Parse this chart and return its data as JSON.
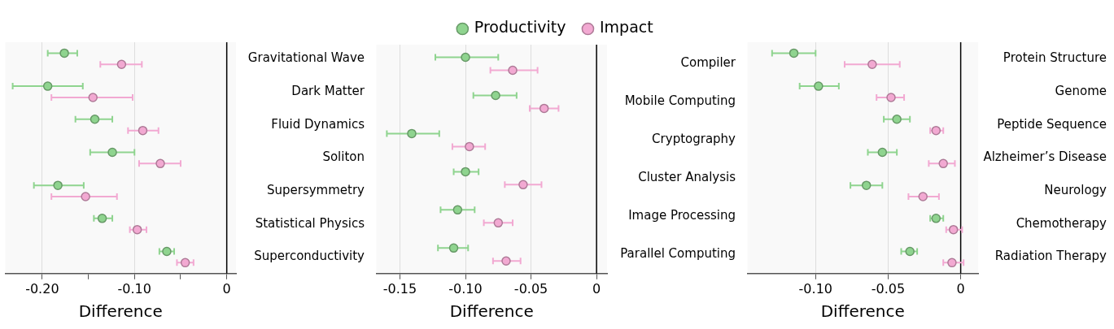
{
  "chart_data": [
    {
      "type": "scatter",
      "orientation": "horizontal",
      "xlabel": "Difference",
      "categories": [
        "Gravitational Wave",
        "Dark Matter",
        "Fluid Dynamics",
        "Soliton",
        "Supersymmetry",
        "Statistical Physics",
        "Superconductivity"
      ],
      "xlim": [
        -0.24,
        0.01
      ],
      "xticks": [
        {
          "value": -0.2,
          "label": "-0.20"
        },
        {
          "value": -0.15,
          "label": null
        },
        {
          "value": -0.1,
          "label": "-0.10"
        },
        {
          "value": -0.05,
          "label": null
        },
        {
          "value": 0,
          "label": "0"
        }
      ],
      "grid": "x",
      "marker": "circle",
      "ref_lines": [
        {
          "axis": "x",
          "value": 0,
          "color": "#000000"
        }
      ],
      "series": [
        {
          "color": "#8fd48f",
          "values": [
            -0.176,
            -0.194,
            -0.143,
            -0.124,
            -0.183,
            -0.135,
            -0.065
          ],
          "errors": [
            [
              -0.194,
              -0.162
            ],
            [
              -0.232,
              -0.156
            ],
            [
              -0.164,
              -0.124
            ],
            [
              -0.148,
              -0.1
            ],
            [
              -0.209,
              -0.155
            ],
            [
              -0.144,
              -0.124
            ],
            [
              -0.073,
              -0.057
            ]
          ]
        },
        {
          "color": "#f2a9d2",
          "values": [
            -0.114,
            -0.145,
            -0.091,
            -0.072,
            -0.153,
            -0.097,
            -0.045
          ],
          "errors": [
            [
              -0.137,
              -0.092
            ],
            [
              -0.19,
              -0.102
            ],
            [
              -0.107,
              -0.074
            ],
            [
              -0.095,
              -0.05
            ],
            [
              -0.19,
              -0.119
            ],
            [
              -0.105,
              -0.087
            ],
            [
              -0.054,
              -0.036
            ]
          ]
        }
      ]
    },
    {
      "type": "scatter",
      "orientation": "horizontal",
      "xlabel": "Difference",
      "categories": [
        "Compiler",
        "Mobile Computing",
        "Cryptography",
        "Cluster Analysis",
        "Image Processing",
        "Parallel Computing"
      ],
      "xlim": [
        -0.168,
        0.008
      ],
      "xticks": [
        {
          "value": -0.15,
          "label": "-0.15"
        },
        {
          "value": -0.1,
          "label": "-0.10"
        },
        {
          "value": -0.05,
          "label": "-0.05"
        },
        {
          "value": 0,
          "label": "0"
        }
      ],
      "grid": "x",
      "marker": "circle",
      "legend": "top",
      "ref_lines": [
        {
          "axis": "x",
          "value": 0,
          "color": "#000000"
        }
      ],
      "series": [
        {
          "name": "Productivity",
          "color": "#8fd48f",
          "values": [
            -0.1,
            -0.077,
            -0.141,
            -0.1,
            -0.106,
            -0.109
          ],
          "errors": [
            [
              -0.123,
              -0.075
            ],
            [
              -0.094,
              -0.061
            ],
            [
              -0.16,
              -0.12
            ],
            [
              -0.109,
              -0.09
            ],
            [
              -0.119,
              -0.093
            ],
            [
              -0.121,
              -0.098
            ]
          ]
        },
        {
          "name": "Impact",
          "color": "#f2a9d2",
          "values": [
            -0.064,
            -0.04,
            -0.097,
            -0.056,
            -0.075,
            -0.069
          ],
          "errors": [
            [
              -0.081,
              -0.045
            ],
            [
              -0.051,
              -0.029
            ],
            [
              -0.11,
              -0.085
            ],
            [
              -0.07,
              -0.042
            ],
            [
              -0.086,
              -0.064
            ],
            [
              -0.079,
              -0.058
            ]
          ]
        }
      ]
    },
    {
      "type": "scatter",
      "orientation": "horizontal",
      "xlabel": "Difference",
      "categories": [
        "Protein Structure",
        "Genome",
        "Peptide Sequence",
        "Alzheimer’s Disease",
        "Neurology",
        "Chemotherapy",
        "Radiation Therapy"
      ],
      "xlim": [
        -0.147,
        0.012
      ],
      "xticks": [
        {
          "value": -0.1,
          "label": "-0.10"
        },
        {
          "value": -0.05,
          "label": "-0.05"
        },
        {
          "value": 0,
          "label": "0"
        }
      ],
      "grid": "x",
      "marker": "circle",
      "ref_lines": [
        {
          "axis": "x",
          "value": 0,
          "color": "#000000"
        }
      ],
      "series": [
        {
          "color": "#8fd48f",
          "values": [
            -0.115,
            -0.098,
            -0.044,
            -0.054,
            -0.065,
            -0.017,
            -0.035
          ],
          "errors": [
            [
              -0.13,
              -0.1
            ],
            [
              -0.111,
              -0.084
            ],
            [
              -0.053,
              -0.035
            ],
            [
              -0.064,
              -0.044
            ],
            [
              -0.076,
              -0.054
            ],
            [
              -0.021,
              -0.012
            ],
            [
              -0.041,
              -0.03
            ]
          ]
        },
        {
          "color": "#f2a9d2",
          "values": [
            -0.061,
            -0.048,
            -0.017,
            -0.012,
            -0.026,
            -0.005,
            -0.006
          ],
          "errors": [
            [
              -0.08,
              -0.042
            ],
            [
              -0.058,
              -0.039
            ],
            [
              -0.021,
              -0.012
            ],
            [
              -0.022,
              -0.004
            ],
            [
              -0.036,
              -0.015
            ],
            [
              -0.01,
              0.001
            ],
            [
              -0.012,
              0.002
            ]
          ]
        }
      ]
    }
  ]
}
